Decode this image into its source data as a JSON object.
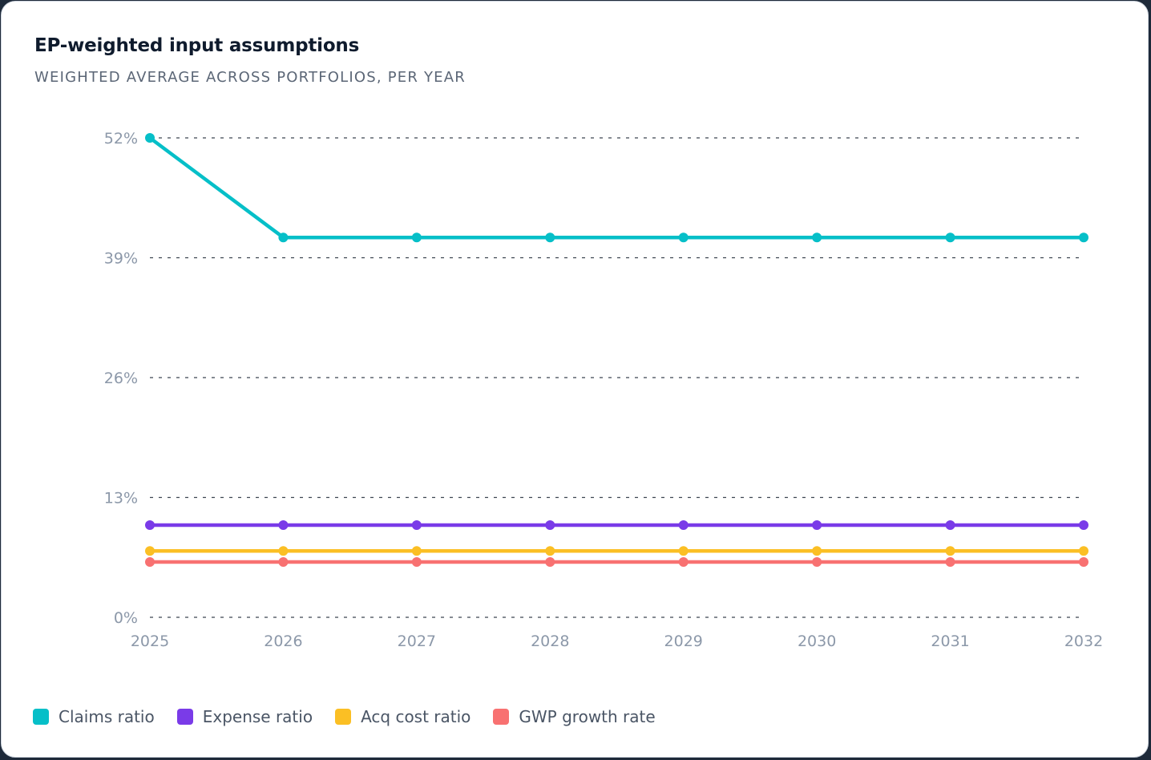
{
  "card": {
    "title": "EP-weighted input assumptions",
    "subtitle": "WEIGHTED AVERAGE ACROSS PORTFOLIOS, PER YEAR"
  },
  "chart_data": {
    "type": "line",
    "x": [
      "2025",
      "2026",
      "2027",
      "2028",
      "2029",
      "2030",
      "2031",
      "2032"
    ],
    "ylim": [
      0,
      52
    ],
    "yticks": [
      0,
      13,
      26,
      39,
      52
    ],
    "ytick_labels": [
      "0%",
      "13%",
      "26%",
      "39%",
      "52%"
    ],
    "grid": true,
    "legend_position": "bottom-left",
    "series": [
      {
        "name": "Claims ratio",
        "color": "#06bfc8",
        "values": [
          52,
          41.2,
          41.2,
          41.2,
          41.2,
          41.2,
          41.2,
          41.2
        ]
      },
      {
        "name": "Expense ratio",
        "color": "#7a3be8",
        "values": [
          10,
          10,
          10,
          10,
          10,
          10,
          10,
          10
        ]
      },
      {
        "name": "Acq cost ratio",
        "color": "#fbbf24",
        "values": [
          7.2,
          7.2,
          7.2,
          7.2,
          7.2,
          7.2,
          7.2,
          7.2
        ]
      },
      {
        "name": "GWP growth rate",
        "color": "#f87171",
        "values": [
          6,
          6,
          6,
          6,
          6,
          6,
          6,
          6
        ]
      }
    ]
  }
}
